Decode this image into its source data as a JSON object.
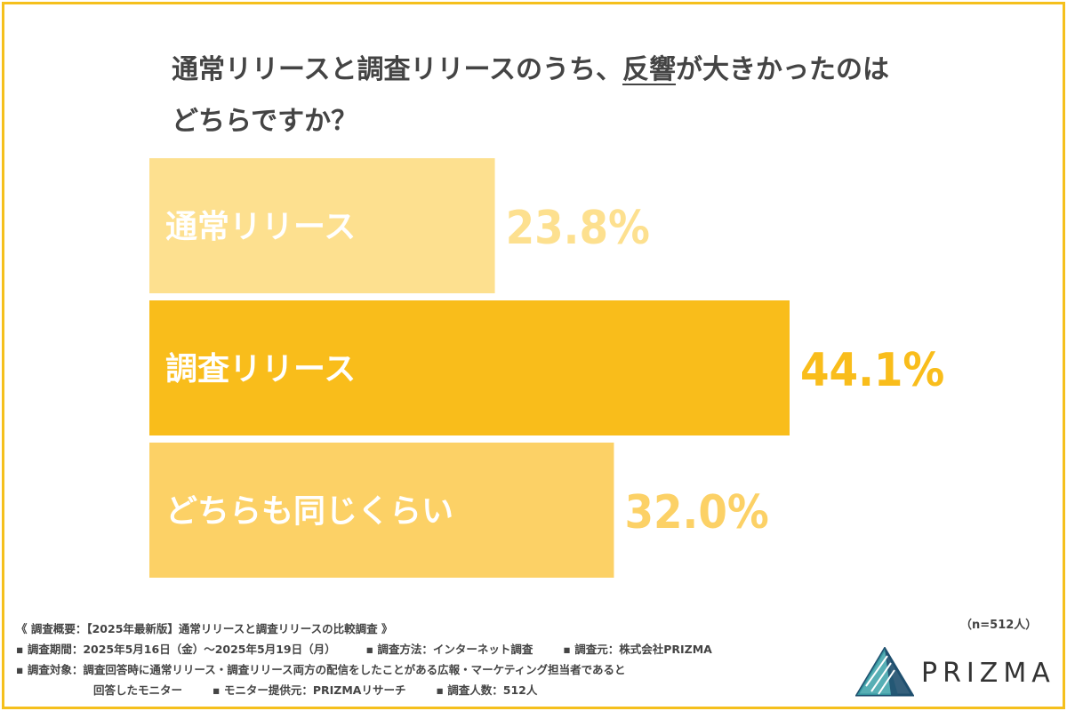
{
  "question": {
    "line1_before": "通常リリースと調査リリースのうち、",
    "line1_underline": "反響",
    "line1_after": "が大きかったのは",
    "line2": "どちらですか？"
  },
  "chart_data": {
    "type": "bar",
    "orientation": "horizontal",
    "categories": [
      "通常リリース",
      "調査リリース",
      "どちらも同じくらい"
    ],
    "values": [
      23.8,
      44.1,
      32.0
    ],
    "value_labels": [
      "23.8%",
      "44.1%",
      "32.0%"
    ],
    "colors": [
      "#fde08f",
      "#f9bd1b",
      "#fcd166"
    ],
    "label_colors": [
      "#fde08f",
      "#f9bd1b",
      "#fcd166"
    ],
    "title": "通常リリースと調査リリースのうち、反響が大きかったのはどちらですか？",
    "xlabel": "",
    "ylabel": "",
    "xlim": [
      0,
      44.1
    ],
    "grid": false
  },
  "footer": {
    "overview": "《 調査概要：【2025年最新版】通常リリースと調査リリースの比較調査 》",
    "period": "▪ 調査期間：2025年5月16日（金）〜2025年5月19日（月）",
    "method": "▪ 調査方法：インターネット調査",
    "source": "▪ 調査元：株式会社PRIZMA",
    "target": "▪ 調査対象：調査回答時に通常リリース・調査リリース両方の配信をしたことがある広報・マーケティング担当者であると",
    "target_cont": "回答したモニター",
    "provider": "▪ モニター提供元：PRIZMAリサーチ",
    "count": "▪ 調査人数：512人"
  },
  "sample_size": "（n=512人）",
  "logo": {
    "text": "PRIZMA",
    "icon": "prism-triangle-icon",
    "colors": [
      "#3aa1a8",
      "#1f4f6e",
      "#3dbdb5"
    ]
  }
}
